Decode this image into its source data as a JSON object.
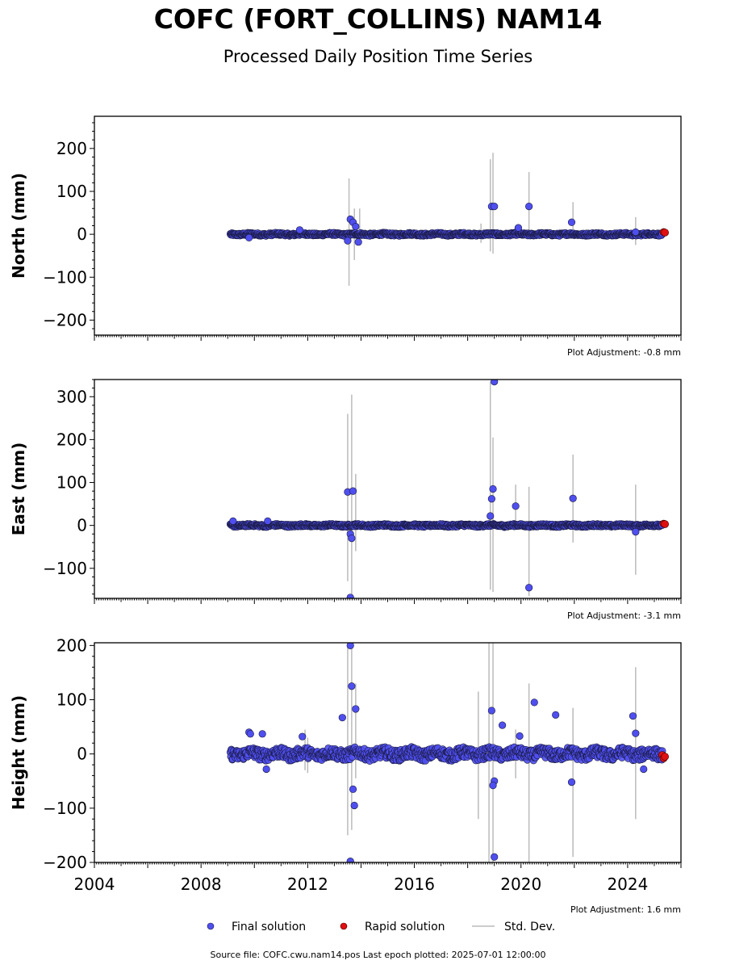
{
  "title": "COFC (FORT_COLLINS) NAM14",
  "subtitle": "Processed Daily Position Time Series",
  "footer": "Source file: COFC.cwu.nam14.pos  Last epoch plotted: 2025-07-01 12:00:00",
  "legend": {
    "final": "Final solution",
    "rapid": "Rapid solution",
    "std": "Std. Dev."
  },
  "colors": {
    "final": "#4f4ff0",
    "rapid": "#e01010",
    "std": "#bbbbbb",
    "axis": "#000000"
  },
  "chart_data": [
    {
      "type": "scatter",
      "ylabel": "North (mm)",
      "adjustment": "Plot Adjustment: -0.8 mm",
      "xlim": [
        2004,
        2026
      ],
      "ylim": [
        -235,
        275
      ],
      "yticks": [
        -200,
        -100,
        0,
        100,
        200
      ],
      "scatter_band": 3,
      "band_range": [
        2009.1,
        2025.3
      ],
      "outliers": [
        [
          2013.6,
          35
        ],
        [
          2013.7,
          28
        ],
        [
          2013.5,
          -15
        ],
        [
          2013.8,
          18
        ],
        [
          2013.9,
          -18
        ],
        [
          2009.8,
          -8
        ],
        [
          2011.7,
          10
        ],
        [
          2018.9,
          65
        ],
        [
          2019.0,
          65
        ],
        [
          2019.9,
          15
        ],
        [
          2020.3,
          65
        ],
        [
          2021.9,
          28
        ],
        [
          2024.3,
          5
        ]
      ],
      "stddev": [
        [
          2013.55,
          -120,
          130
        ],
        [
          2013.75,
          -60,
          60
        ],
        [
          2013.95,
          -20,
          60
        ],
        [
          2018.5,
          -20,
          25
        ],
        [
          2018.85,
          -40,
          175
        ],
        [
          2018.95,
          -45,
          190
        ],
        [
          2020.3,
          -5,
          145
        ],
        [
          2021.95,
          -5,
          75
        ],
        [
          2024.3,
          -25,
          40
        ]
      ],
      "rapid": [
        [
          2025.35,
          5
        ],
        [
          2025.4,
          4
        ]
      ]
    },
    {
      "type": "scatter",
      "ylabel": "East (mm)",
      "adjustment": "Plot Adjustment: -3.1 mm",
      "xlim": [
        2004,
        2026
      ],
      "ylim": [
        -170,
        340
      ],
      "yticks": [
        -100,
        0,
        100,
        200,
        300
      ],
      "scatter_band": 3,
      "band_range": [
        2009.1,
        2025.3
      ],
      "outliers": [
        [
          2009.2,
          10
        ],
        [
          2010.5,
          10
        ],
        [
          2013.5,
          78
        ],
        [
          2013.7,
          80
        ],
        [
          2013.6,
          -20
        ],
        [
          2013.65,
          -30
        ],
        [
          2013.6,
          -168
        ],
        [
          2018.9,
          62
        ],
        [
          2018.95,
          85
        ],
        [
          2018.85,
          22
        ],
        [
          2019.0,
          335
        ],
        [
          2019.8,
          45
        ],
        [
          2020.3,
          -145
        ],
        [
          2021.95,
          63
        ],
        [
          2024.3,
          -15
        ]
      ],
      "stddev": [
        [
          2013.5,
          -130,
          260
        ],
        [
          2013.65,
          -170,
          305
        ],
        [
          2013.8,
          -60,
          120
        ],
        [
          2018.85,
          -150,
          335
        ],
        [
          2018.95,
          -155,
          205
        ],
        [
          2019.8,
          -5,
          95
        ],
        [
          2020.3,
          -165,
          90
        ],
        [
          2021.95,
          -40,
          165
        ],
        [
          2024.3,
          -115,
          95
        ]
      ],
      "rapid": [
        [
          2025.35,
          4
        ],
        [
          2025.4,
          3
        ]
      ]
    },
    {
      "type": "scatter",
      "ylabel": "Height (mm)",
      "adjustment": "Plot Adjustment: 1.6 mm",
      "xlim": [
        2004,
        2026
      ],
      "ylim": [
        -200,
        205
      ],
      "yticks": [
        -200,
        -100,
        0,
        100,
        200
      ],
      "xticks": [
        2004,
        2008,
        2012,
        2016,
        2020,
        2024
      ],
      "scatter_band": 10,
      "band_range": [
        2009.1,
        2025.3
      ],
      "outliers": [
        [
          2009.8,
          40
        ],
        [
          2009.85,
          37
        ],
        [
          2010.3,
          37
        ],
        [
          2010.45,
          -28
        ],
        [
          2011.8,
          32
        ],
        [
          2013.3,
          67
        ],
        [
          2013.6,
          200
        ],
        [
          2013.65,
          125
        ],
        [
          2013.8,
          83
        ],
        [
          2013.7,
          -65
        ],
        [
          2013.75,
          -95
        ],
        [
          2013.6,
          -198
        ],
        [
          2018.9,
          80
        ],
        [
          2019.0,
          -50
        ],
        [
          2018.95,
          -58
        ],
        [
          2019.0,
          -190
        ],
        [
          2019.3,
          53
        ],
        [
          2019.95,
          33
        ],
        [
          2020.5,
          95
        ],
        [
          2021.3,
          72
        ],
        [
          2021.9,
          -52
        ],
        [
          2024.2,
          70
        ],
        [
          2024.3,
          38
        ],
        [
          2024.6,
          -28
        ]
      ],
      "stddev": [
        [
          2011.9,
          -30,
          45
        ],
        [
          2012.0,
          -35,
          30
        ],
        [
          2013.5,
          -150,
          200
        ],
        [
          2013.65,
          -140,
          205
        ],
        [
          2013.8,
          -45,
          130
        ],
        [
          2018.4,
          -120,
          115
        ],
        [
          2018.8,
          -200,
          205
        ],
        [
          2018.95,
          -205,
          205
        ],
        [
          2019.8,
          -45,
          45
        ],
        [
          2020.3,
          -205,
          130
        ],
        [
          2021.95,
          -190,
          85
        ],
        [
          2024.3,
          -120,
          160
        ]
      ],
      "rapid": [
        [
          2025.3,
          -2
        ],
        [
          2025.35,
          -8
        ],
        [
          2025.4,
          -5
        ]
      ]
    }
  ]
}
